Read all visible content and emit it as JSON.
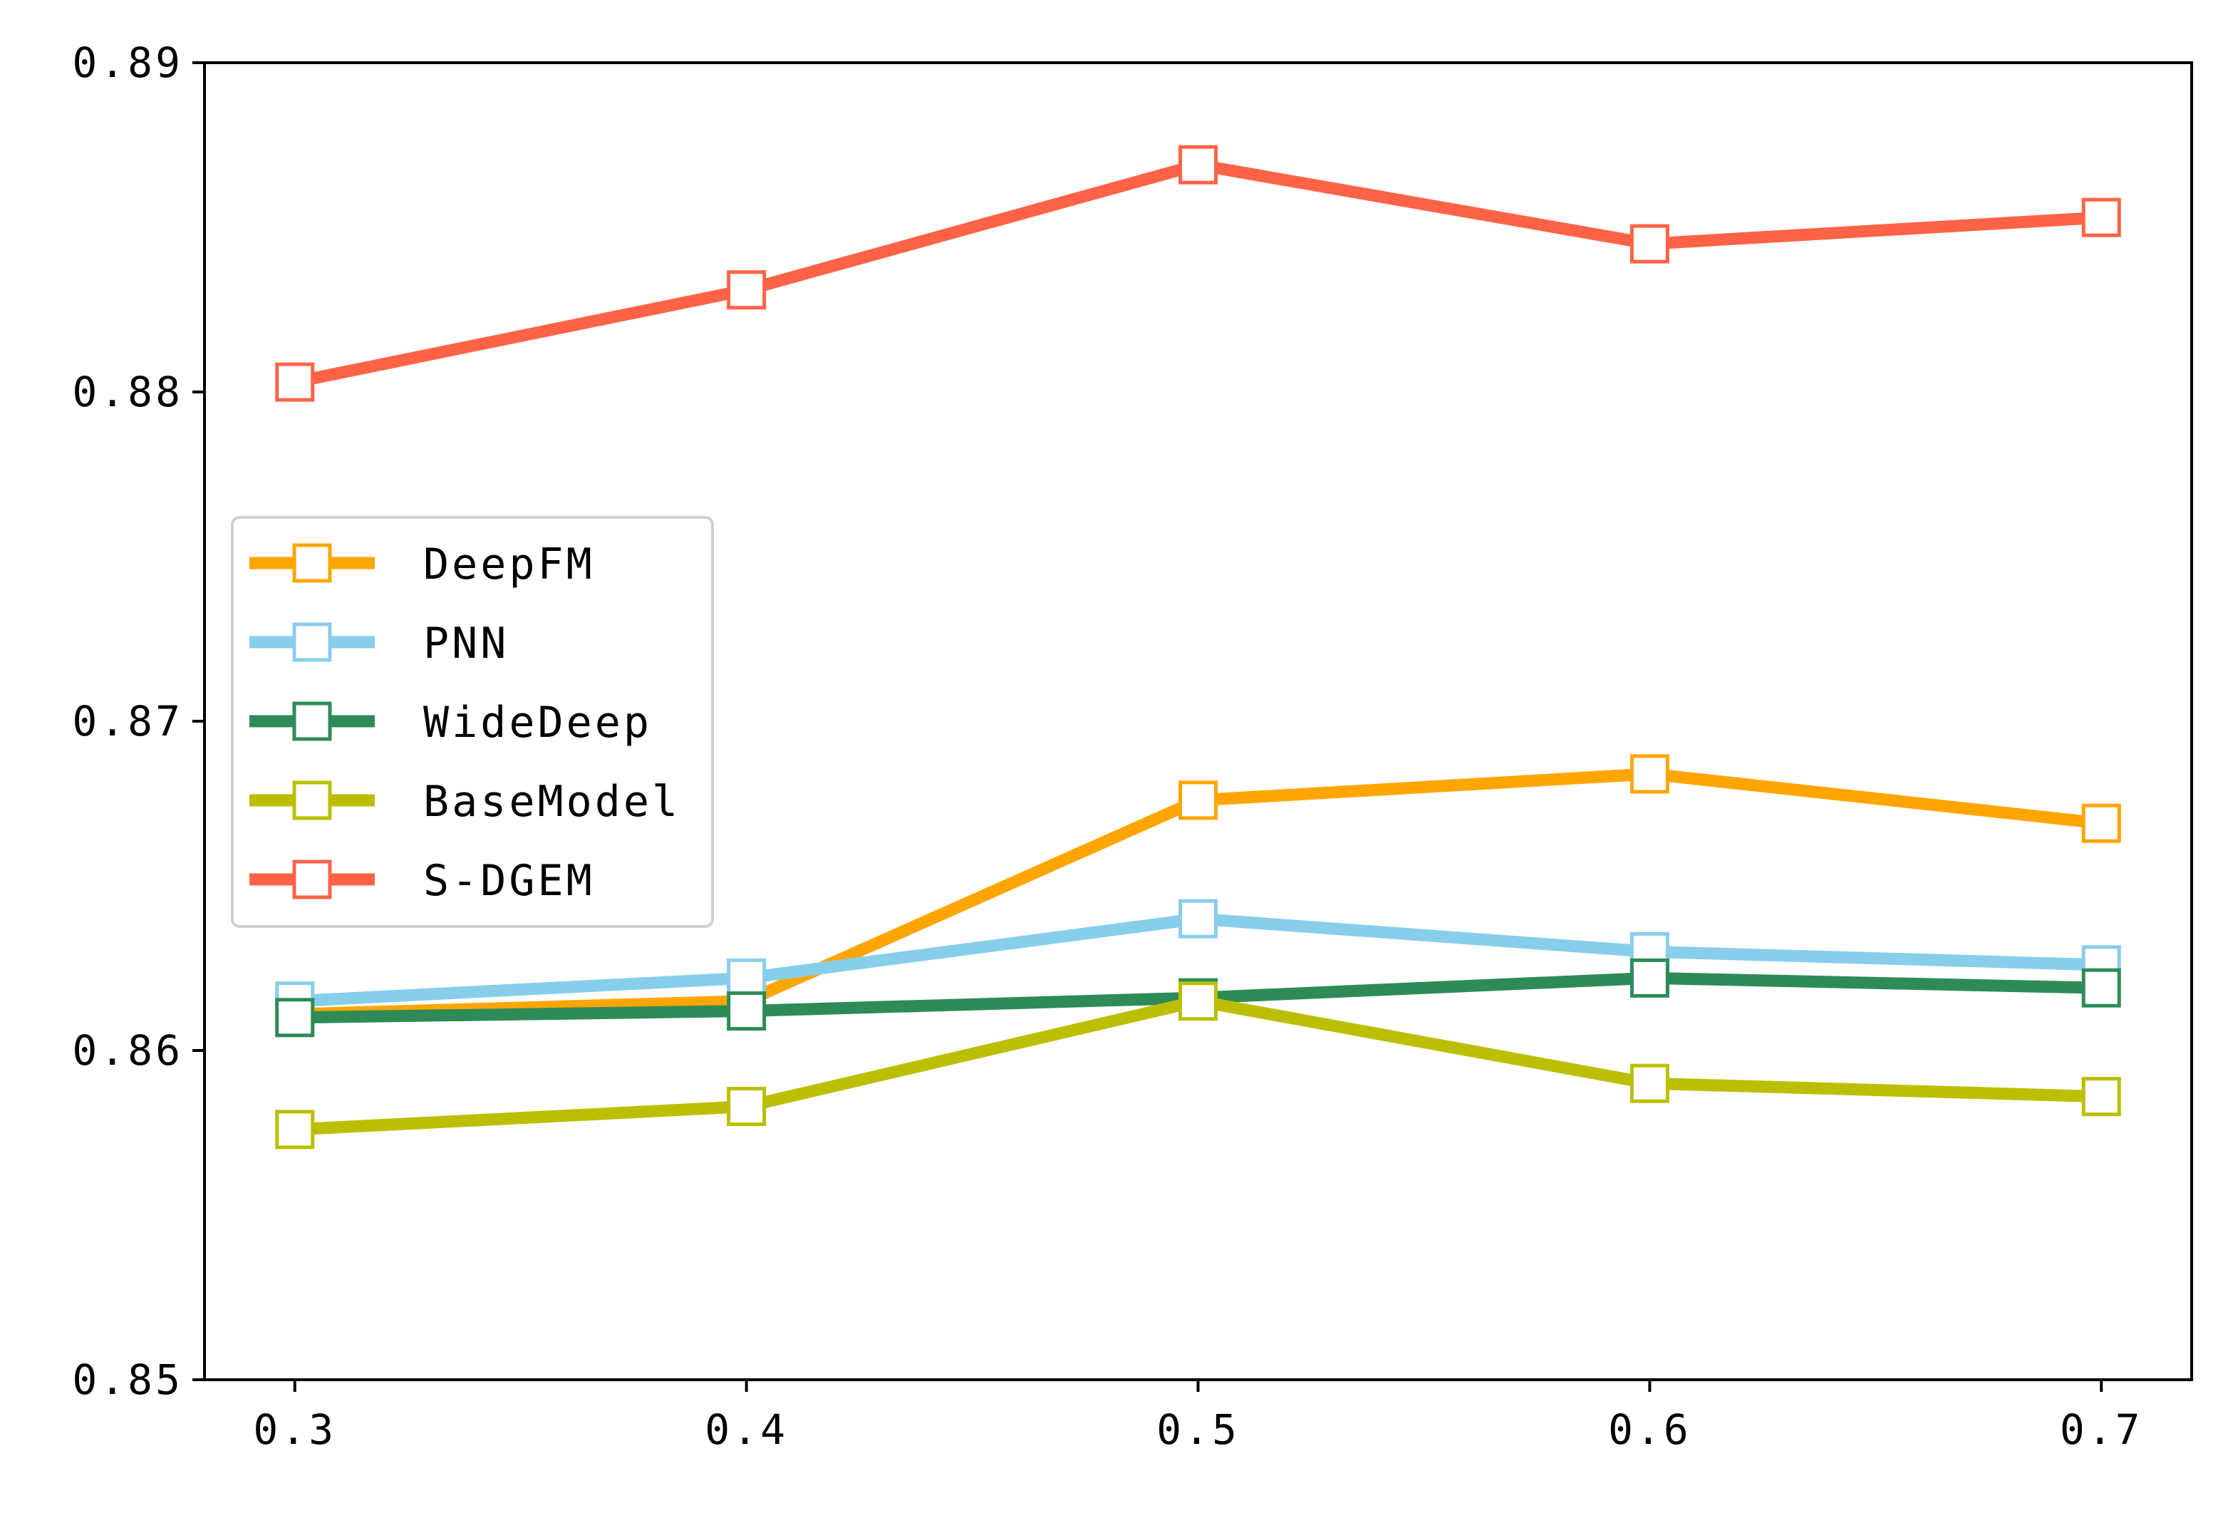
{
  "chart_data": {
    "type": "line",
    "title": "",
    "xlabel": "",
    "ylabel": "",
    "x": [
      0.3,
      0.4,
      0.5,
      0.6,
      0.7
    ],
    "x_tick_labels": [
      "0.3",
      "0.4",
      "0.5",
      "0.6",
      "0.7"
    ],
    "xlim": [
      0.28,
      0.72
    ],
    "ylim": [
      0.85,
      0.89
    ],
    "y_ticks": [
      0.85,
      0.86,
      0.87,
      0.88,
      0.89
    ],
    "y_tick_labels": [
      "0.85",
      "0.86",
      "0.87",
      "0.88",
      "0.89"
    ],
    "grid": false,
    "legend_position": "center-left",
    "marker": "open-square",
    "series": [
      {
        "name": "DeepFM",
        "color": "#FFA500",
        "values": [
          0.8611,
          0.8615,
          0.8676,
          0.8684,
          0.8669
        ]
      },
      {
        "name": "PNN",
        "color": "#87CEEB",
        "values": [
          0.8615,
          0.8622,
          0.864,
          0.863,
          0.8626
        ]
      },
      {
        "name": "WideDeep",
        "color": "#2E8B57",
        "values": [
          0.861,
          0.8612,
          0.8616,
          0.8622,
          0.8619
        ]
      },
      {
        "name": "BaseModel",
        "color": "#BBBF00",
        "values": [
          0.8576,
          0.8583,
          0.8615,
          0.859,
          0.8586
        ]
      },
      {
        "name": "S-DGEM",
        "color": "#FF6347",
        "values": [
          0.8803,
          0.8831,
          0.8869,
          0.8845,
          0.8853
        ]
      }
    ]
  }
}
